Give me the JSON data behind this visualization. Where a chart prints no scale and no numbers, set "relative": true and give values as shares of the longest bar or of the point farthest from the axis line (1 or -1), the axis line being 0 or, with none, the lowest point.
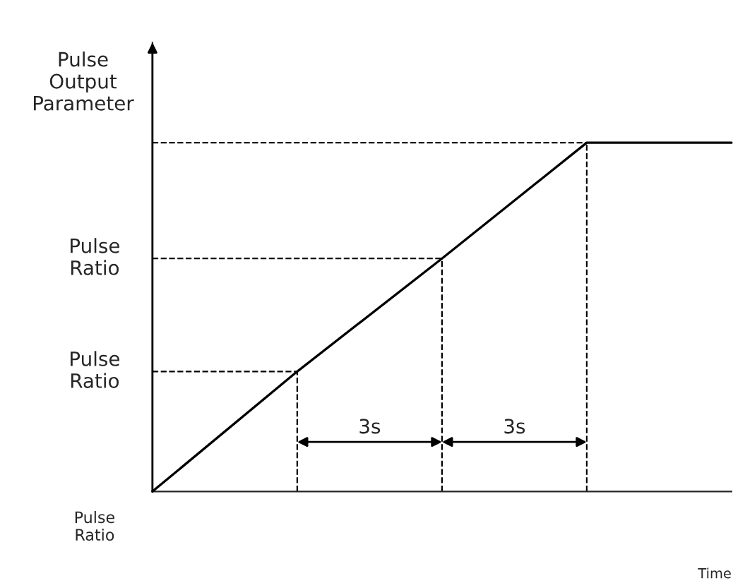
{
  "chart_data": {
    "type": "line",
    "relative": true,
    "ylabel": "Pulse Output Parameter",
    "categories": [
      null,
      null,
      null,
      null,
      null
    ],
    "series": [
      {
        "color": "#000000",
        "values": [
          0,
          0.344,
          0.668,
          1,
          1
        ]
      }
    ],
    "ref_lines": [
      {
        "axis": "y",
        "value": 0,
        "label": "Pulse Ratio"
      },
      {
        "axis": "y",
        "value": 0.344,
        "label": "Pulse Ratio",
        "line_style": "dashed"
      },
      {
        "axis": "y",
        "value": 0.668,
        "label": "Pulse Ratio",
        "line_style": "dashed"
      }
    ],
    "annotations": [
      "3s",
      "3s",
      "Time"
    ],
    "marker": "none",
    "line_style": "solid",
    "legend": false
  }
}
